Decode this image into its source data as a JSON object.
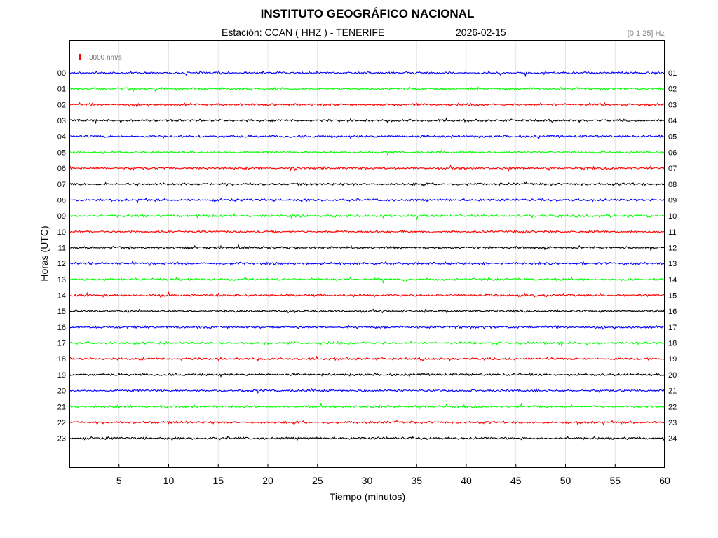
{
  "header": {
    "title": "INSTITUTO GEOGRÁFICO NACIONAL",
    "station": "Estación:  CCAN ( HHZ ) - TENERIFE",
    "date": "2026-02-15",
    "filter": "[0.1 25] Hz"
  },
  "chart_data": {
    "type": "line",
    "title": "INSTITUTO GEOGRÁFICO NACIONAL",
    "xlabel": "Tiempo (minutos)",
    "ylabel": "Horas (UTC)",
    "xlim": [
      0,
      60
    ],
    "xticks": [
      "5",
      "10",
      "15",
      "20",
      "25",
      "30",
      "35",
      "40",
      "45",
      "50",
      "55",
      "60"
    ],
    "grid": true,
    "scale_label": "3000 nm/s",
    "scale_color": "#ff0000",
    "left_hours": [
      "00",
      "01",
      "02",
      "03",
      "04",
      "05",
      "06",
      "07",
      "08",
      "09",
      "10",
      "11",
      "12",
      "13",
      "14",
      "15",
      "16",
      "17",
      "18",
      "19",
      "20",
      "21",
      "22",
      "23"
    ],
    "right_hours": [
      "01",
      "02",
      "03",
      "04",
      "05",
      "06",
      "07",
      "08",
      "09",
      "10",
      "11",
      "12",
      "13",
      "14",
      "15",
      "16",
      "17",
      "18",
      "19",
      "20",
      "21",
      "22",
      "23",
      "24"
    ],
    "trace_colors": [
      "#0000ff",
      "#00ff00",
      "#ff0000",
      "#000000"
    ]
  }
}
